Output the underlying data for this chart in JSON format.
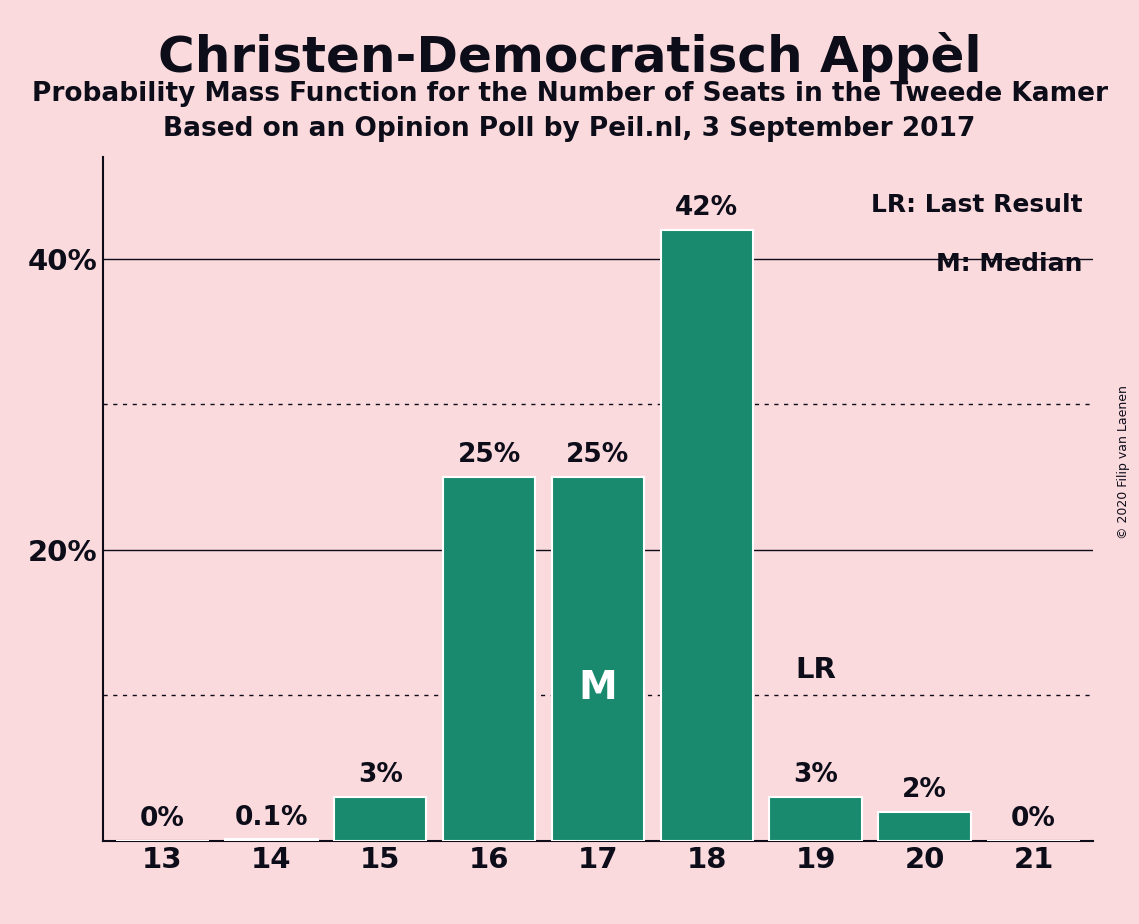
{
  "title": "Christen-Democratisch Appèl",
  "subtitle1": "Probability Mass Function for the Number of Seats in the Tweede Kamer",
  "subtitle2": "Based on an Opinion Poll by Peil.nl, 3 September 2017",
  "copyright": "© 2020 Filip van Laenen",
  "categories": [
    13,
    14,
    15,
    16,
    17,
    18,
    19,
    20,
    21
  ],
  "values": [
    0.0,
    0.1,
    3.0,
    25.0,
    25.0,
    42.0,
    3.0,
    2.0,
    0.0
  ],
  "bar_color": "#1a8a6e",
  "background_color": "#fadadd",
  "text_color": "#0d0d1a",
  "bar_labels": [
    "0%",
    "0.1%",
    "3%",
    "25%",
    "25%",
    "42%",
    "3%",
    "2%",
    "0%"
  ],
  "median_bar_seat": 17,
  "median_label": "M",
  "lr_bar_seat": 19,
  "lr_label": "LR",
  "legend_lr": "LR: Last Result",
  "legend_m": "M: Median",
  "ylim_max": 47,
  "dotted_lines": [
    10,
    30
  ],
  "solid_lines": [
    20,
    40
  ],
  "bar_width": 0.85
}
